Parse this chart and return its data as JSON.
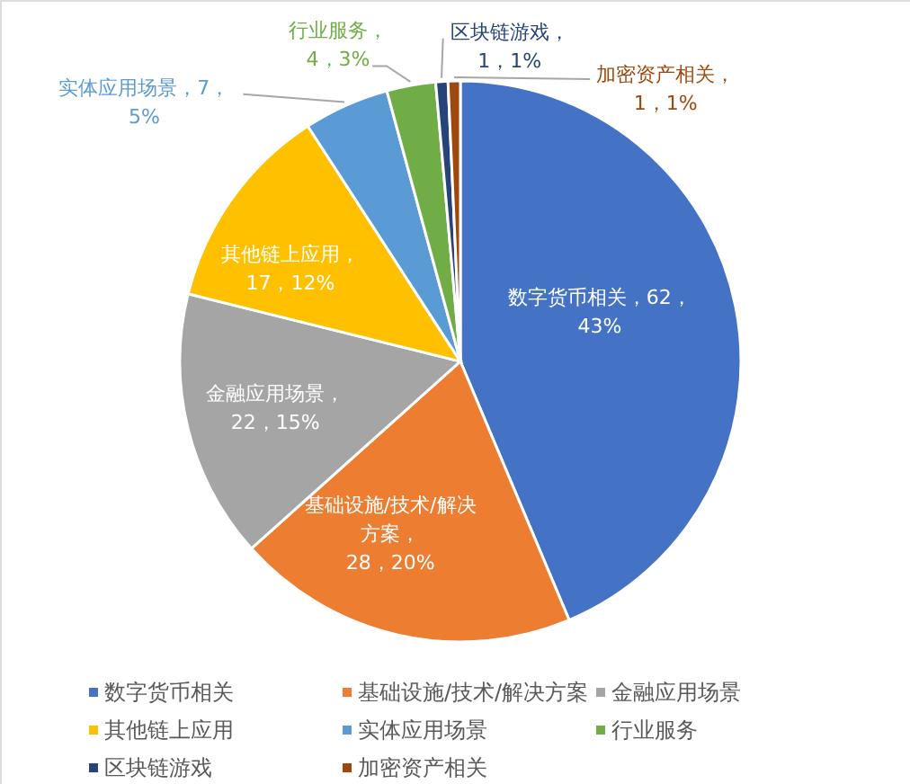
{
  "chart_data": {
    "type": "pie",
    "categories": [
      "数字货币相关",
      "基础设施/技术/解决方案",
      "金融应用场景",
      "其他链上应用",
      "实体应用场景",
      "行业服务",
      "区块链游戏",
      "加密资产相关"
    ],
    "values": [
      62,
      28,
      22,
      17,
      7,
      4,
      1,
      1
    ],
    "colors": [
      "#4472c4",
      "#ed7d31",
      "#a5a5a5",
      "#ffc000",
      "#5b9bd5",
      "#70ad47",
      "#264478",
      "#9e480e"
    ],
    "value_labels": [
      "数字货币相关，62，43%",
      "基础设施/技术/解决方案，28，20%",
      "金融应用场景，22，15%",
      "其他链上应用，17，12%",
      "实体应用场景，7，5%",
      "行业服务，4，3%",
      "区块链游戏，1，1%",
      "加密资产相关，1，1%"
    ],
    "legend": "bottom"
  }
}
